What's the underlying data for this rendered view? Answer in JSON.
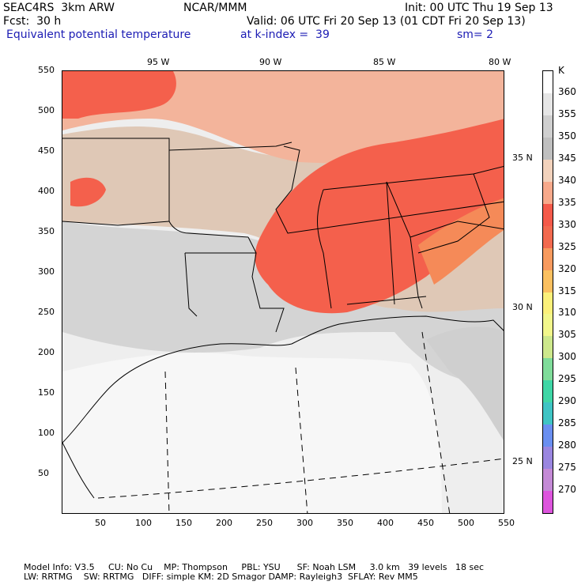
{
  "header": {
    "model": "SEAC4RS  3km ARW",
    "org": "NCAR/MMM",
    "init": "Init: 00 UTC Thu 19 Sep 13",
    "fcst": "Fcst:  30 h",
    "valid": "Valid: 06 UTC Fri 20 Sep 13 (01 CDT Fri 20 Sep 13)",
    "field": "Equivalent potential temperature",
    "level": "at k-index =  39",
    "smooth": "sm= 2"
  },
  "lon_labels": [
    "95 W",
    "90 W",
    "85 W",
    "80 W"
  ],
  "lat_labels": [
    "35 N",
    "30 N",
    "25 N"
  ],
  "x_ticks": [
    "50",
    "100",
    "150",
    "200",
    "250",
    "300",
    "350",
    "400",
    "450",
    "500",
    "550"
  ],
  "y_ticks": [
    "550",
    "500",
    "450",
    "400",
    "350",
    "300",
    "250",
    "200",
    "150",
    "100",
    "50"
  ],
  "colorbar": {
    "unit": "K",
    "labels": [
      "360",
      "355",
      "350",
      "345",
      "340",
      "335",
      "330",
      "325",
      "320",
      "315",
      "310",
      "305",
      "300",
      "295",
      "290",
      "285",
      "280",
      "275",
      "270"
    ],
    "colors": [
      "#ffffff",
      "#e6e6e6",
      "#cfcfcf",
      "#bfbfbf",
      "#f2d2bc",
      "#f7a98b",
      "#f45a4a",
      "#f26a4f",
      "#f79a5e",
      "#fbc060",
      "#fbf07a",
      "#f2f78b",
      "#cde88c",
      "#7fdc9a",
      "#3fd6a6",
      "#3fc4c4",
      "#6a8ff0",
      "#9a86e0",
      "#c48ad6",
      "#dd55dd"
    ]
  },
  "footer": {
    "line1": "Model Info: V3.5     CU: No Cu    MP: Thompson     PBL: YSU      SF: Noah LSM     3.0 km   39 levels   18 sec",
    "line2": "LW: RRTMG    SW: RRTMG   DIFF: simple KM: 2D Smagor DAMP: Rayleigh3  SFLAY: Rev MM5"
  }
}
